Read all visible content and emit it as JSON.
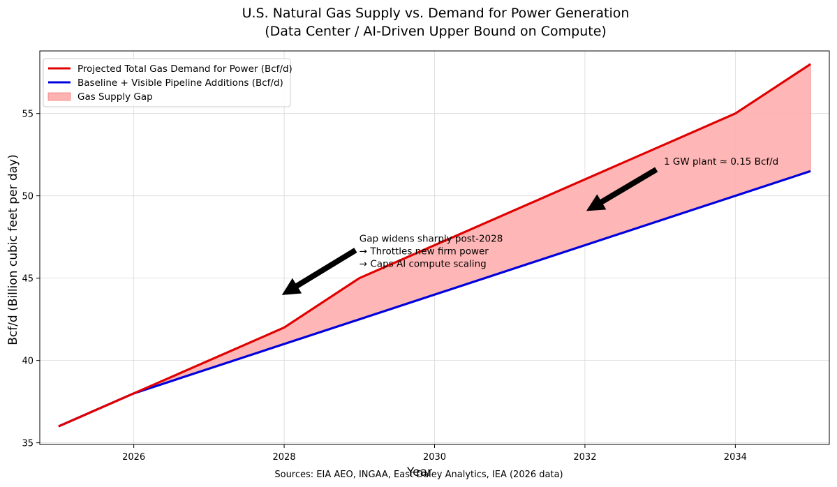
{
  "chart_data": {
    "type": "line",
    "title": "U.S. Natural Gas Supply vs. Demand for Power Generation",
    "subtitle": "(Data Center / AI-Driven Upper Bound on Compute)",
    "xlabel": "Year",
    "ylabel": "Bcf/d (Billion cubic feet per day)",
    "xlim": [
      2024.75,
      2035.25
    ],
    "ylim": [
      34.9,
      58.8
    ],
    "xticks": [
      2026,
      2028,
      2030,
      2032,
      2034
    ],
    "yticks": [
      35,
      40,
      45,
      50,
      55
    ],
    "grid": true,
    "legend_position": "top-left",
    "series": [
      {
        "name": "Projected Total Gas Demand for Power (Bcf/d)",
        "color": "#e00000",
        "x": [
          2025,
          2026,
          2028,
          2029,
          2034,
          2035
        ],
        "y": [
          36,
          38,
          42,
          45,
          55,
          58
        ]
      },
      {
        "name": "Baseline + Visible Pipeline Additions (Bcf/d)",
        "color": "#0000dd",
        "x": [
          2025,
          2026,
          2035
        ],
        "y": [
          36,
          38,
          51.5
        ]
      }
    ],
    "fill": {
      "name": "Gas Supply Gap",
      "color": "#ffb2b2",
      "edge_color": "#f08080"
    },
    "annotations": [
      {
        "lines": [
          "Gap widens sharply post-2028",
          "→ Throttles new firm power",
          "→ Caps AI compute scaling"
        ],
        "text_at": [
          2029,
          47.2
        ],
        "arrow_from": [
          2028.95,
          46.7
        ],
        "arrow_to": [
          2028.05,
          44.2
        ]
      },
      {
        "lines": [
          "1 GW plant ≈ 0.15 Bcf/d"
        ],
        "text_at": [
          2033.05,
          51.9
        ],
        "arrow_from": [
          2032.95,
          51.6
        ],
        "arrow_to": [
          2032.1,
          49.3
        ]
      }
    ],
    "source": "Sources: EIA AEO, INGAA, East Daley Analytics, IEA (2026 data)"
  }
}
